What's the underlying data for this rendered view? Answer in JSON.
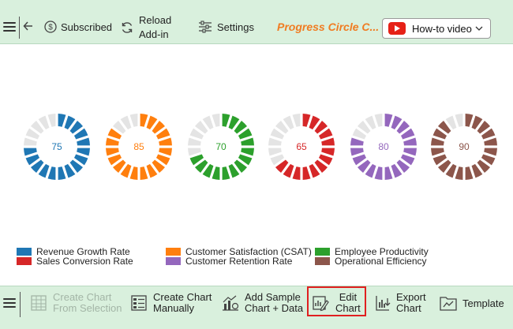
{
  "toolbar": {
    "subscribed_label": "Subscribed",
    "reload_line1": "Reload",
    "reload_line2": "Add-in",
    "settings_label": "Settings",
    "brand_title": "Progress Circle C...",
    "howto_label": "How-to video"
  },
  "chart_data": {
    "type": "progress-circle",
    "segments_per_ring": 20,
    "track_color": "#e4e4e4",
    "items": [
      {
        "name": "Revenue Growth Rate",
        "value": 75,
        "color": "#1f77b4"
      },
      {
        "name": "Customer Satisfaction (CSAT)",
        "value": 85,
        "color": "#ff7f0e"
      },
      {
        "name": "Employee Productivity",
        "value": 70,
        "color": "#2ca02c"
      },
      {
        "name": "Sales Conversion Rate",
        "value": 65,
        "color": "#d62728"
      },
      {
        "name": "Customer Retention Rate",
        "value": 80,
        "color": "#9467bd"
      },
      {
        "name": "Operational Efficiency",
        "value": 90,
        "color": "#8c564b"
      }
    ],
    "legend_placement": "bottom-left"
  },
  "bottombar": {
    "create_from_selection_line1": "Create Chart",
    "create_from_selection_line2": "From Selection",
    "create_manually_line1": "Create Chart",
    "create_manually_line2": "Manually",
    "add_sample_line1": "Add Sample",
    "add_sample_line2": "Chart + Data",
    "edit_line1": "Edit",
    "edit_line2": "Chart",
    "export_line1": "Export",
    "export_line2": "Chart",
    "template_label": "Template"
  },
  "colors": {
    "bar_background": "#d9f0dd",
    "brand_orange": "#f07c22",
    "highlight_red": "#e02020"
  }
}
